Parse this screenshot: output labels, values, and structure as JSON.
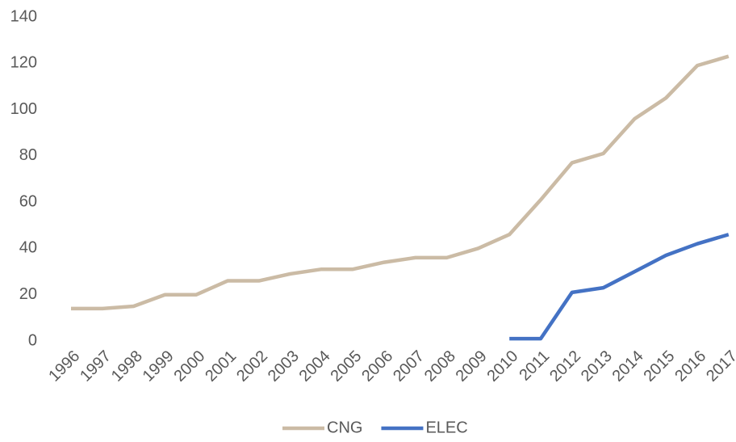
{
  "chart_data": {
    "type": "line",
    "categories": [
      "1996",
      "1997",
      "1998",
      "1999",
      "2000",
      "2001",
      "2002",
      "2003",
      "2004",
      "2005",
      "2006",
      "2007",
      "2008",
      "2009",
      "2010",
      "2011",
      "2012",
      "2013",
      "2014",
      "2015",
      "2016",
      "2017"
    ],
    "series": [
      {
        "name": "CNG",
        "color": "#cbbba5",
        "values": [
          14,
          14,
          15,
          20,
          20,
          26,
          26,
          29,
          31,
          31,
          34,
          36,
          36,
          40,
          46,
          61,
          77,
          81,
          96,
          105,
          119,
          123
        ]
      },
      {
        "name": "ELEC",
        "color": "#4472c4",
        "values": [
          null,
          null,
          null,
          null,
          null,
          null,
          null,
          null,
          null,
          null,
          null,
          null,
          null,
          null,
          1,
          1,
          21,
          23,
          30,
          37,
          42,
          46
        ]
      }
    ],
    "ylim": [
      0,
      140
    ],
    "yticks": [
      0,
      20,
      40,
      60,
      80,
      100,
      120,
      140
    ],
    "grid": false,
    "legend": "bottom"
  }
}
